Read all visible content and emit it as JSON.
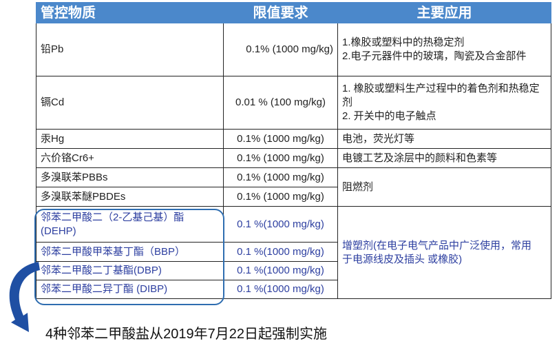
{
  "headers": [
    "管控物质",
    "限值要求",
    "主要应用"
  ],
  "rows": [
    {
      "substance": "铅Pb",
      "limit": "0.1% (1000 mg/kg)",
      "use": [
        "1.橡胶或塑料中的热稳定剂",
        "2.电子元器件中的玻璃，陶瓷及合金部件"
      ]
    },
    {
      "substance": "镉Cd",
      "limit": "0.01 % (100 mg/kg)",
      "use": [
        "1. 橡胶或塑料生产过程中的着色剂和热稳定剂",
        "2. 开关中的电子触点"
      ]
    },
    {
      "substance": "汞Hg",
      "limit": "0.1% (1000 mg/kg)",
      "use": [
        "电池，荧光灯等"
      ]
    },
    {
      "substance": "六价铬Cr6+",
      "limit": "0.1% (1000 mg/kg)",
      "use": [
        "电镀工艺及涂层中的颜料和色素等"
      ]
    },
    {
      "substance": "多溴联苯PBBs",
      "limit": "0.1% (1000 mg/kg)"
    },
    {
      "substance": "多溴联苯醚PBDEs",
      "limit": "0.1% (1000 mg/kg)"
    },
    {
      "substance": "邻苯二甲酸二（2-乙基己基）酯(DEHP)",
      "limit": "0.1 %(1000 mg/kg)"
    },
    {
      "substance": "邻苯二甲酸甲苯基丁酯（BBP）",
      "limit": "0.1 %(1000 mg/kg)"
    },
    {
      "substance": "邻苯二甲酸二丁基酯(DBP)",
      "limit": "0.1 %(1000 mg/kg)"
    },
    {
      "substance": "邻苯二甲酸二异丁酯 (DIBP)",
      "limit": "0.1 %(1000 mg/kg)"
    }
  ],
  "flame_retardant_use": "阻燃剂",
  "plasticizer_use": "增塑剂(在电子电气产品中广泛使用，常用于电源线皮及插头 或橡胶)",
  "note": "4种邻苯二甲酸盐从2019年7月22日起强制实施",
  "colors": {
    "header": "#4b88cb",
    "phthalate_text": "#2d3fa0",
    "highlight": "#2e6db0"
  }
}
